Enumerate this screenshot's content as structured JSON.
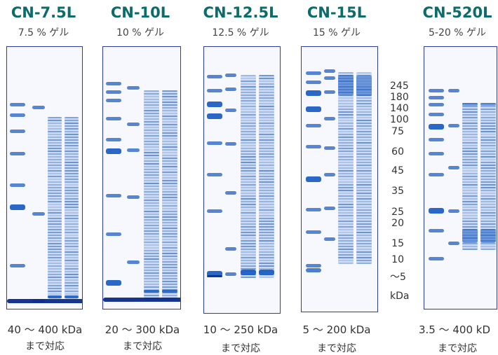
{
  "gels": [
    {
      "id": "cn75",
      "title": "CN-7.5L",
      "subtitle": "7.5 % ゲル",
      "range": "40 ～ 400 kDa",
      "note": "まで対応"
    },
    {
      "id": "cn10",
      "title": "CN-10L",
      "subtitle": "10 % ゲル",
      "range": "20 ～ 300 kDa",
      "note": "まで対応"
    },
    {
      "id": "cn125",
      "title": "CN-12.5L",
      "subtitle": "12.5 % ゲル",
      "range": "10 ～ 250 kDa",
      "note": "まで対応"
    },
    {
      "id": "cn15",
      "title": "CN-15L",
      "subtitle": "15 % ゲル",
      "range": "5 ～ 200 kDa",
      "note": "まで対応"
    },
    {
      "id": "cn520",
      "title": "CN-520L",
      "subtitle": "5-20 % ゲル",
      "range": "3.5 ～ 400 kD",
      "note": "まで対応"
    }
  ],
  "markers": {
    "labels": [
      "245",
      "180",
      "140",
      "100",
      "75",
      "60",
      "45",
      "35",
      "25",
      "20",
      "15",
      "10",
      "～5"
    ],
    "unit": "kDa"
  },
  "colors": {
    "title": "#0e6b6b",
    "band": "#1f5fc4",
    "frame": "#2c3f9e"
  }
}
